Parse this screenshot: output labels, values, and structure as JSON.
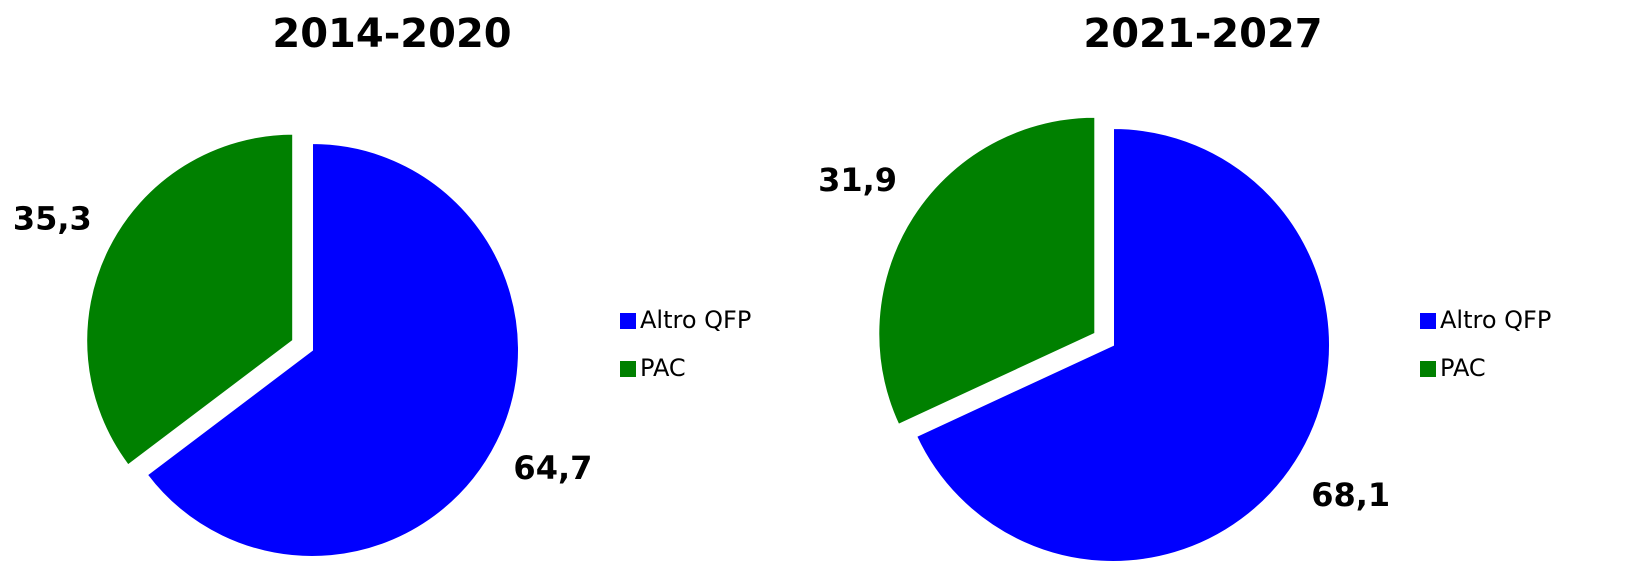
{
  "chart_data": [
    {
      "type": "pie",
      "title": "2014-2020",
      "categories": [
        "Altro QFP",
        "PAC"
      ],
      "values": [
        64.7,
        35.3
      ],
      "value_labels": [
        "64,7",
        "35,3"
      ],
      "colors": [
        "#0000ff",
        "#008000"
      ],
      "legend": "right"
    },
    {
      "type": "pie",
      "title": "2021-2027",
      "categories": [
        "Altro QFP",
        "PAC"
      ],
      "values": [
        68.1,
        31.9
      ],
      "value_labels": [
        "68,1",
        "31,9"
      ],
      "colors": [
        "#0000ff",
        "#008000"
      ],
      "legend": "right"
    }
  ]
}
